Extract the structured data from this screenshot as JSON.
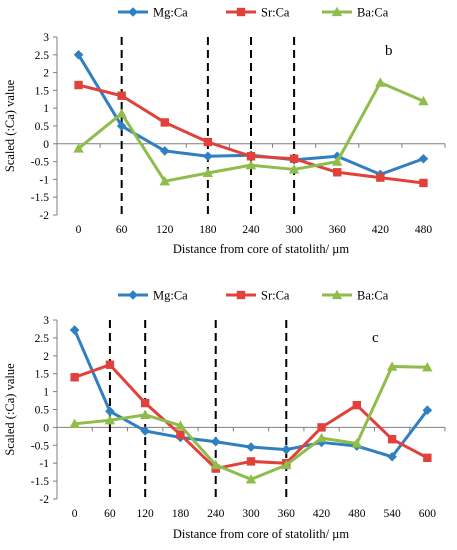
{
  "chart_data": [
    {
      "type": "line",
      "panel_label": "b",
      "title": "",
      "xlabel": "Distance from core of statolith/ µm",
      "ylabel": "Scaled (:Ca) value",
      "x": [
        0,
        60,
        120,
        180,
        240,
        300,
        360,
        420,
        480
      ],
      "x_tick_labels": [
        "0",
        "60",
        "120",
        "180",
        "240",
        "300",
        "360",
        "420",
        "480"
      ],
      "ylim": [
        -2,
        3
      ],
      "y_tick_labels": [
        "-2",
        "-1.5",
        "-1",
        "-0.5",
        "0",
        "0.5",
        "1",
        "1.5",
        "2",
        "2.5",
        "3"
      ],
      "legend_position": "top",
      "series": [
        {
          "name": "Mg:Ca",
          "color": "#2f7fc1",
          "marker": "diamond",
          "values": [
            2.5,
            0.5,
            -0.2,
            -0.35,
            -0.32,
            -0.45,
            -0.35,
            -0.86,
            -0.42
          ]
        },
        {
          "name": "Sr:Ca",
          "color": "#e0413a",
          "marker": "square",
          "values": [
            1.65,
            1.35,
            0.6,
            0.05,
            -0.35,
            -0.42,
            -0.8,
            -0.95,
            -1.1
          ]
        },
        {
          "name": "Ba:Ca",
          "color": "#8fbc4a",
          "marker": "triangle",
          "values": [
            -0.13,
            0.85,
            -1.05,
            -0.82,
            -0.6,
            -0.72,
            -0.5,
            1.72,
            1.2
          ]
        }
      ],
      "vertical_dashed_lines_x": [
        60,
        180,
        240,
        300
      ]
    },
    {
      "type": "line",
      "panel_label": "c",
      "title": "",
      "xlabel": "Distance from core of statolith/ µm",
      "ylabel": "Scaled (:Ca) value",
      "x": [
        0,
        60,
        120,
        180,
        240,
        300,
        360,
        420,
        480,
        540,
        600
      ],
      "x_tick_labels": [
        "0",
        "60",
        "120",
        "180",
        "240",
        "300",
        "360",
        "420",
        "480",
        "540",
        "600"
      ],
      "ylim": [
        -2,
        3
      ],
      "y_tick_labels": [
        "-2",
        "-1.5",
        "-1",
        "-0.5",
        "0",
        "0.5",
        "1",
        "1.5",
        "2",
        "2.5",
        "3"
      ],
      "legend_position": "top",
      "series": [
        {
          "name": "Mg:Ca",
          "color": "#2f7fc1",
          "marker": "diamond",
          "values": [
            2.72,
            0.45,
            -0.1,
            -0.28,
            -0.4,
            -0.55,
            -0.62,
            -0.42,
            -0.52,
            -0.82,
            0.48
          ]
        },
        {
          "name": "Sr:Ca",
          "color": "#e0413a",
          "marker": "square",
          "values": [
            1.4,
            1.75,
            0.68,
            -0.2,
            -1.15,
            -0.95,
            -1.0,
            0.0,
            0.62,
            -0.33,
            -0.85
          ]
        },
        {
          "name": "Ba:Ca",
          "color": "#8fbc4a",
          "marker": "triangle",
          "values": [
            0.1,
            0.2,
            0.35,
            0.05,
            -1.05,
            -1.45,
            -1.05,
            -0.3,
            -0.45,
            1.7,
            1.68
          ]
        }
      ],
      "vertical_dashed_lines_x": [
        60,
        120,
        240,
        360
      ]
    }
  ]
}
